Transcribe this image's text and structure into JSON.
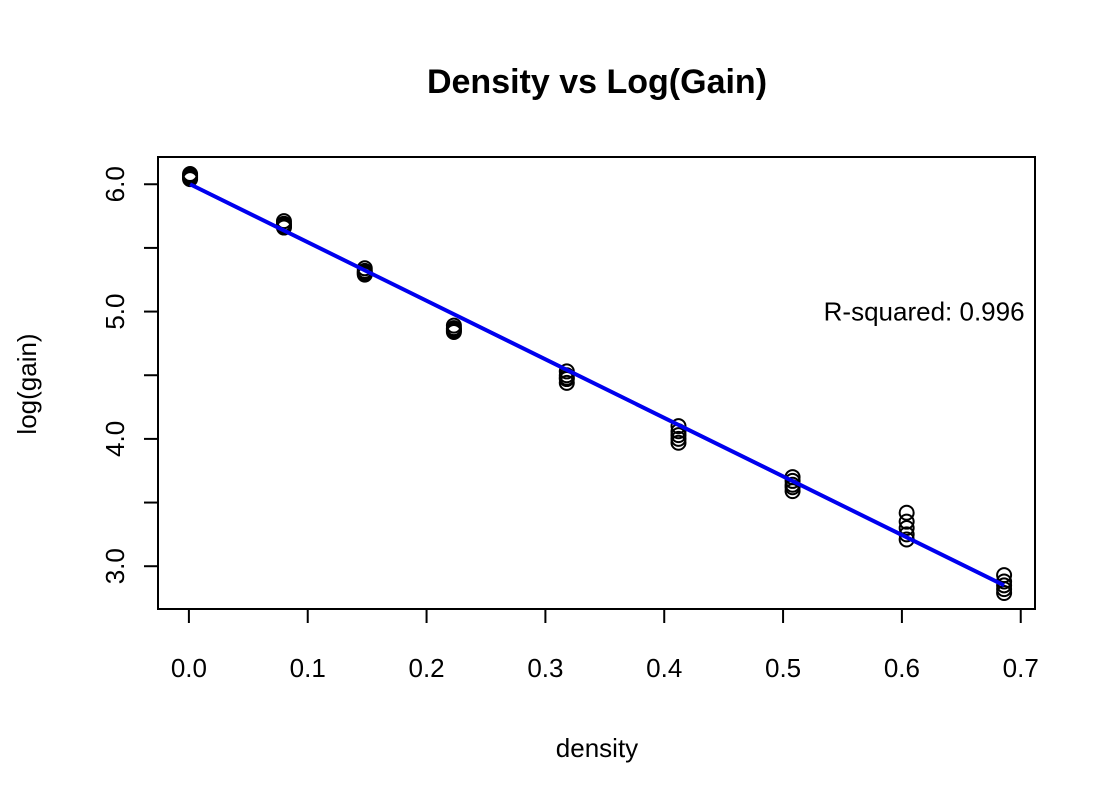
{
  "chart_data": {
    "type": "scatter",
    "title": "Density vs Log(Gain)",
    "xlabel": "density",
    "ylabel": "log(gain)",
    "xlim": [
      -0.026,
      0.712
    ],
    "ylim": [
      2.664,
      6.214
    ],
    "x_ticks": [
      "0.0",
      "0.1",
      "0.2",
      "0.3",
      "0.4",
      "0.5",
      "0.6",
      "0.7"
    ],
    "y_ticks": [
      "3.0",
      "4.0",
      "5.0",
      "6.0"
    ],
    "y_minor_ticks": [
      3.5,
      4.5,
      5.5
    ],
    "grid": false,
    "point_style": "open-circle",
    "points": [
      {
        "x": 0.001,
        "y": 6.08
      },
      {
        "x": 0.001,
        "y": 6.06
      },
      {
        "x": 0.001,
        "y": 6.04
      },
      {
        "x": 0.001,
        "y": 6.07
      },
      {
        "x": 0.001,
        "y": 6.05
      },
      {
        "x": 0.08,
        "y": 5.71
      },
      {
        "x": 0.08,
        "y": 5.68
      },
      {
        "x": 0.08,
        "y": 5.66
      },
      {
        "x": 0.08,
        "y": 5.69
      },
      {
        "x": 0.08,
        "y": 5.67
      },
      {
        "x": 0.148,
        "y": 5.34
      },
      {
        "x": 0.148,
        "y": 5.31
      },
      {
        "x": 0.148,
        "y": 5.29
      },
      {
        "x": 0.148,
        "y": 5.32
      },
      {
        "x": 0.148,
        "y": 5.3
      },
      {
        "x": 0.223,
        "y": 4.89
      },
      {
        "x": 0.223,
        "y": 4.86
      },
      {
        "x": 0.223,
        "y": 4.84
      },
      {
        "x": 0.223,
        "y": 4.87
      },
      {
        "x": 0.223,
        "y": 4.85
      },
      {
        "x": 0.318,
        "y": 4.53
      },
      {
        "x": 0.318,
        "y": 4.5
      },
      {
        "x": 0.318,
        "y": 4.47
      },
      {
        "x": 0.318,
        "y": 4.44
      },
      {
        "x": 0.318,
        "y": 4.48
      },
      {
        "x": 0.412,
        "y": 4.1
      },
      {
        "x": 0.412,
        "y": 4.06
      },
      {
        "x": 0.412,
        "y": 4.03
      },
      {
        "x": 0.412,
        "y": 4.0
      },
      {
        "x": 0.412,
        "y": 3.97
      },
      {
        "x": 0.508,
        "y": 3.7
      },
      {
        "x": 0.508,
        "y": 3.67
      },
      {
        "x": 0.508,
        "y": 3.64
      },
      {
        "x": 0.508,
        "y": 3.62
      },
      {
        "x": 0.508,
        "y": 3.59
      },
      {
        "x": 0.604,
        "y": 3.42
      },
      {
        "x": 0.604,
        "y": 3.35
      },
      {
        "x": 0.604,
        "y": 3.3
      },
      {
        "x": 0.604,
        "y": 3.25
      },
      {
        "x": 0.604,
        "y": 3.21
      },
      {
        "x": 0.686,
        "y": 2.93
      },
      {
        "x": 0.686,
        "y": 2.88
      },
      {
        "x": 0.686,
        "y": 2.85
      },
      {
        "x": 0.686,
        "y": 2.82
      },
      {
        "x": 0.686,
        "y": 2.79
      }
    ],
    "fit_line": {
      "color": "#0000ee",
      "x_start": 0.001,
      "y_start": 6.0,
      "x_end": 0.686,
      "y_end": 2.85
    },
    "annotation": {
      "text": "R-squared: 0.996",
      "x": 0.699,
      "y": 5.0,
      "align": "right"
    }
  }
}
